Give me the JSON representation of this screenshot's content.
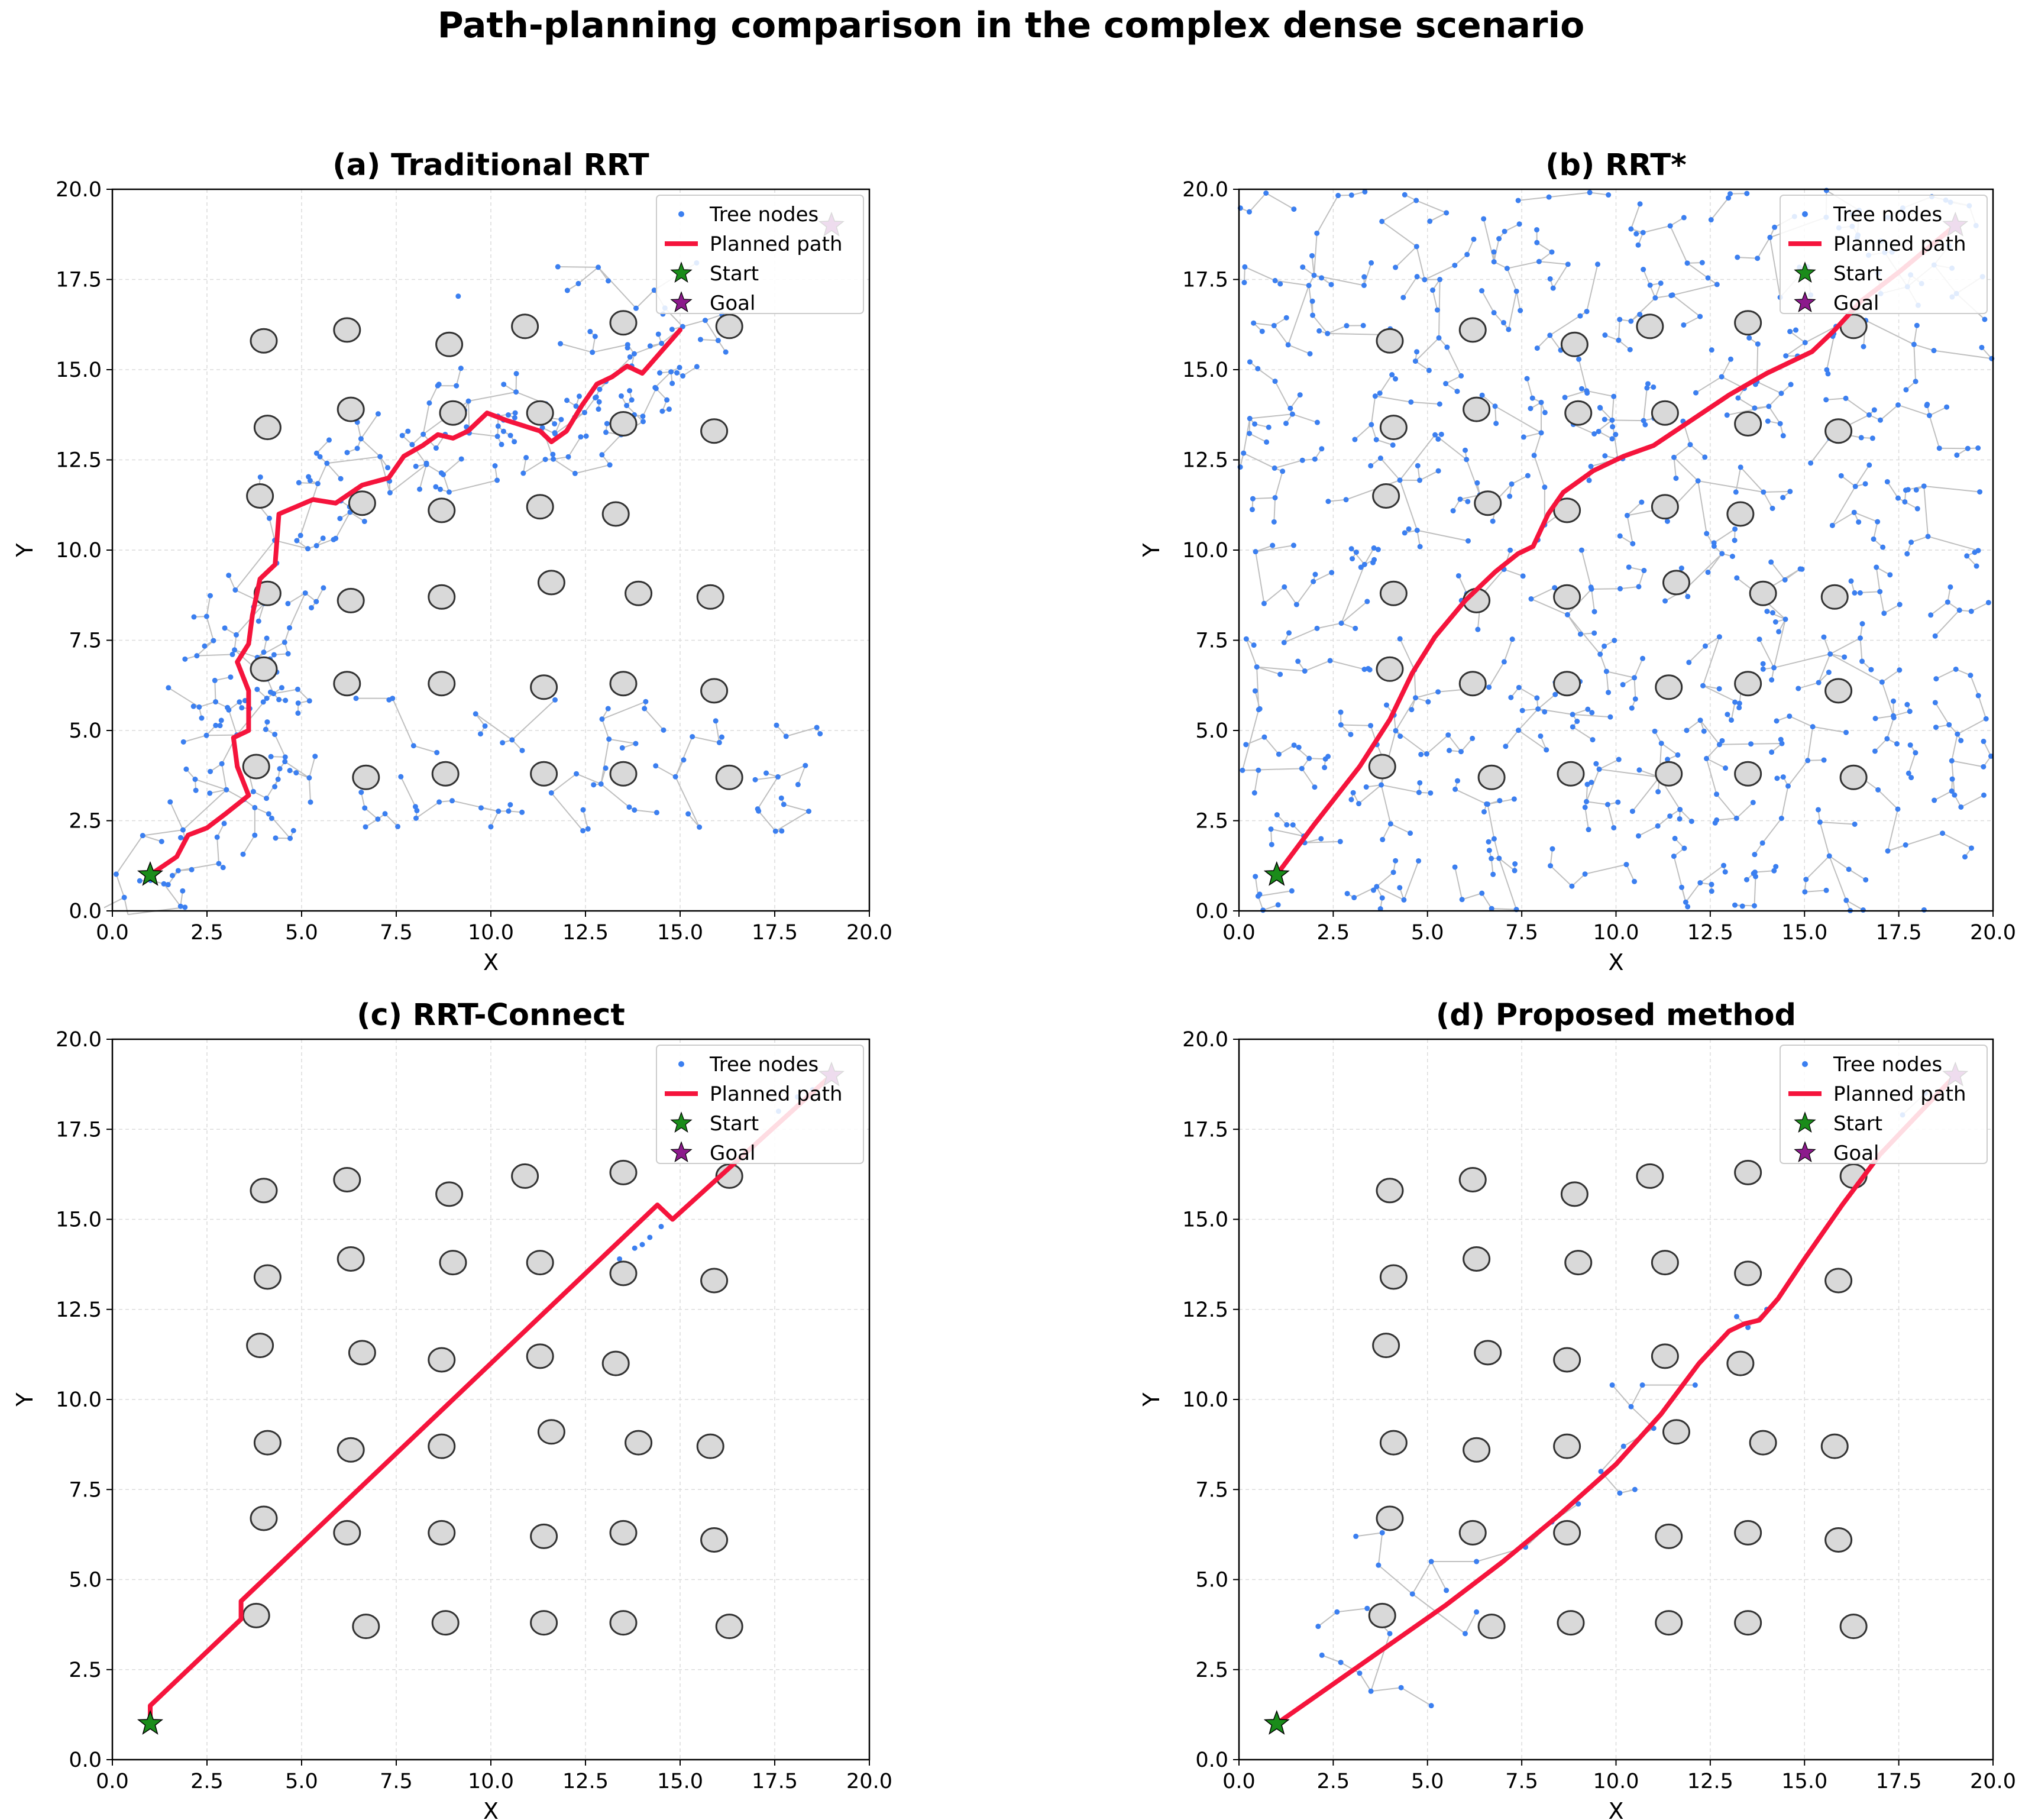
{
  "title": "Path-planning comparison in the complex dense scenario",
  "colors": {
    "tree_node": "#3b7ff0",
    "tree_edge": "#bfbfbf",
    "path": "#f5143c",
    "start": "#1a8c1a",
    "goal": "#8c1a8c",
    "obstacle_fill": "#d9d9d9",
    "obstacle_edge": "#333333"
  },
  "chart_data": [
    {
      "type": "scatter",
      "title": "(a) Traditional RRT",
      "xlabel": "X",
      "ylabel": "Y",
      "xlim": [
        0,
        20
      ],
      "ylim": [
        0,
        20
      ],
      "xticks": [
        "0.0",
        "2.5",
        "5.0",
        "7.5",
        "10.0",
        "12.5",
        "15.0",
        "17.5",
        "20.0"
      ],
      "yticks": [
        "0.0",
        "2.5",
        "5.0",
        "7.5",
        "10.0",
        "12.5",
        "15.0",
        "17.5",
        "20.0"
      ],
      "grid": true,
      "legend": {
        "location": "upper right",
        "entries": [
          "Tree nodes",
          "Planned path",
          "Start",
          "Goal"
        ]
      },
      "obstacles": [
        [
          4.0,
          15.8
        ],
        [
          6.2,
          16.1
        ],
        [
          8.9,
          15.7
        ],
        [
          10.9,
          16.2
        ],
        [
          13.5,
          16.3
        ],
        [
          16.3,
          16.2
        ],
        [
          4.1,
          13.4
        ],
        [
          6.3,
          13.9
        ],
        [
          9.0,
          13.8
        ],
        [
          11.3,
          13.8
        ],
        [
          13.5,
          13.5
        ],
        [
          15.9,
          13.3
        ],
        [
          3.9,
          11.5
        ],
        [
          6.6,
          11.3
        ],
        [
          8.7,
          11.1
        ],
        [
          11.3,
          11.2
        ],
        [
          13.3,
          11.0
        ],
        [
          4.1,
          8.8
        ],
        [
          6.3,
          8.6
        ],
        [
          8.7,
          8.7
        ],
        [
          11.6,
          9.1
        ],
        [
          13.9,
          8.8
        ],
        [
          15.8,
          8.7
        ],
        [
          4.0,
          6.7
        ],
        [
          6.2,
          6.3
        ],
        [
          8.7,
          6.3
        ],
        [
          11.4,
          6.2
        ],
        [
          13.5,
          6.3
        ],
        [
          15.9,
          6.1
        ],
        [
          3.8,
          4.0
        ],
        [
          6.7,
          3.7
        ],
        [
          8.8,
          3.8
        ],
        [
          11.4,
          3.8
        ],
        [
          13.5,
          3.8
        ],
        [
          16.3,
          3.7
        ]
      ],
      "tree_nodes_approx_count": 330,
      "show_tree_edges": true,
      "path": [
        [
          1.0,
          1.0
        ],
        [
          1.7,
          1.5
        ],
        [
          2.0,
          2.1
        ],
        [
          2.5,
          2.3
        ],
        [
          3.0,
          2.7
        ],
        [
          3.6,
          3.2
        ],
        [
          3.3,
          4.0
        ],
        [
          3.2,
          4.8
        ],
        [
          3.6,
          5.0
        ],
        [
          3.6,
          6.1
        ],
        [
          3.3,
          6.9
        ],
        [
          3.6,
          7.4
        ],
        [
          3.7,
          8.2
        ],
        [
          3.9,
          9.2
        ],
        [
          4.3,
          9.6
        ],
        [
          4.4,
          11.0
        ],
        [
          5.3,
          11.4
        ],
        [
          5.9,
          11.3
        ],
        [
          6.6,
          11.8
        ],
        [
          7.3,
          12.0
        ],
        [
          7.7,
          12.6
        ],
        [
          8.2,
          12.9
        ],
        [
          8.6,
          13.2
        ],
        [
          9.0,
          13.1
        ],
        [
          9.4,
          13.3
        ],
        [
          9.9,
          13.8
        ],
        [
          10.4,
          13.6
        ],
        [
          11.3,
          13.3
        ],
        [
          11.6,
          13.0
        ],
        [
          12.0,
          13.3
        ],
        [
          12.4,
          14.0
        ],
        [
          12.8,
          14.6
        ],
        [
          13.2,
          14.8
        ],
        [
          13.6,
          15.1
        ],
        [
          14.0,
          14.9
        ],
        [
          14.5,
          15.5
        ],
        [
          15.0,
          16.1
        ]
      ],
      "start": [
        1.0,
        1.0
      ],
      "goal": [
        19.0,
        19.0
      ]
    },
    {
      "type": "scatter",
      "title": "(b) RRT*",
      "xlabel": "X",
      "ylabel": "Y",
      "xlim": [
        0,
        20
      ],
      "ylim": [
        0,
        20
      ],
      "xticks": [
        "0.0",
        "2.5",
        "5.0",
        "7.5",
        "10.0",
        "12.5",
        "15.0",
        "17.5",
        "20.0"
      ],
      "yticks": [
        "0.0",
        "2.5",
        "5.0",
        "7.5",
        "10.0",
        "12.5",
        "15.0",
        "17.5",
        "20.0"
      ],
      "grid": true,
      "legend": {
        "location": "upper right",
        "entries": [
          "Tree nodes",
          "Planned path",
          "Start",
          "Goal"
        ]
      },
      "obstacles": [
        [
          4.0,
          15.8
        ],
        [
          6.2,
          16.1
        ],
        [
          8.9,
          15.7
        ],
        [
          10.9,
          16.2
        ],
        [
          13.5,
          16.3
        ],
        [
          16.3,
          16.2
        ],
        [
          4.1,
          13.4
        ],
        [
          6.3,
          13.9
        ],
        [
          9.0,
          13.8
        ],
        [
          11.3,
          13.8
        ],
        [
          13.5,
          13.5
        ],
        [
          15.9,
          13.3
        ],
        [
          3.9,
          11.5
        ],
        [
          6.6,
          11.3
        ],
        [
          8.7,
          11.1
        ],
        [
          11.3,
          11.2
        ],
        [
          13.3,
          11.0
        ],
        [
          4.1,
          8.8
        ],
        [
          6.3,
          8.6
        ],
        [
          8.7,
          8.7
        ],
        [
          11.6,
          9.1
        ],
        [
          13.9,
          8.8
        ],
        [
          15.8,
          8.7
        ],
        [
          4.0,
          6.7
        ],
        [
          6.2,
          6.3
        ],
        [
          8.7,
          6.3
        ],
        [
          11.4,
          6.2
        ],
        [
          13.5,
          6.3
        ],
        [
          15.9,
          6.1
        ],
        [
          3.8,
          4.0
        ],
        [
          6.7,
          3.7
        ],
        [
          8.8,
          3.8
        ],
        [
          11.4,
          3.8
        ],
        [
          13.5,
          3.8
        ],
        [
          16.3,
          3.7
        ]
      ],
      "tree_nodes_approx_count": 1500,
      "show_tree_edges": true,
      "path": [
        [
          1.0,
          1.0
        ],
        [
          2.0,
          2.4
        ],
        [
          3.2,
          4.0
        ],
        [
          4.0,
          5.3
        ],
        [
          4.6,
          6.6
        ],
        [
          5.2,
          7.6
        ],
        [
          6.0,
          8.6
        ],
        [
          6.8,
          9.4
        ],
        [
          7.4,
          9.9
        ],
        [
          7.8,
          10.1
        ],
        [
          8.2,
          11.0
        ],
        [
          8.6,
          11.6
        ],
        [
          9.4,
          12.2
        ],
        [
          10.2,
          12.6
        ],
        [
          11.0,
          12.9
        ],
        [
          12.0,
          13.6
        ],
        [
          13.0,
          14.3
        ],
        [
          14.0,
          14.9
        ],
        [
          15.2,
          15.5
        ],
        [
          15.8,
          16.1
        ],
        [
          16.5,
          16.9
        ],
        [
          17.5,
          17.7
        ],
        [
          19.0,
          19.0
        ]
      ],
      "start": [
        1.0,
        1.0
      ],
      "goal": [
        19.0,
        19.0
      ]
    },
    {
      "type": "scatter",
      "title": "(c) RRT-Connect",
      "xlabel": "X",
      "ylabel": "Y",
      "xlim": [
        0,
        20
      ],
      "ylim": [
        0,
        20
      ],
      "xticks": [
        "0.0",
        "2.5",
        "5.0",
        "7.5",
        "10.0",
        "12.5",
        "15.0",
        "17.5",
        "20.0"
      ],
      "yticks": [
        "0.0",
        "2.5",
        "5.0",
        "7.5",
        "10.0",
        "12.5",
        "15.0",
        "17.5",
        "20.0"
      ],
      "grid": true,
      "legend": {
        "location": "upper right",
        "entries": [
          "Tree nodes",
          "Planned path",
          "Start",
          "Goal"
        ]
      },
      "obstacles": [
        [
          4.0,
          15.8
        ],
        [
          6.2,
          16.1
        ],
        [
          8.9,
          15.7
        ],
        [
          10.9,
          16.2
        ],
        [
          13.5,
          16.3
        ],
        [
          16.3,
          16.2
        ],
        [
          4.1,
          13.4
        ],
        [
          6.3,
          13.9
        ],
        [
          9.0,
          13.8
        ],
        [
          11.3,
          13.8
        ],
        [
          13.5,
          13.5
        ],
        [
          15.9,
          13.3
        ],
        [
          3.9,
          11.5
        ],
        [
          6.6,
          11.3
        ],
        [
          8.7,
          11.1
        ],
        [
          11.3,
          11.2
        ],
        [
          13.3,
          11.0
        ],
        [
          4.1,
          8.8
        ],
        [
          6.3,
          8.6
        ],
        [
          8.7,
          8.7
        ],
        [
          11.6,
          9.1
        ],
        [
          13.9,
          8.8
        ],
        [
          15.8,
          8.7
        ],
        [
          4.0,
          6.7
        ],
        [
          6.2,
          6.3
        ],
        [
          8.7,
          6.3
        ],
        [
          11.4,
          6.2
        ],
        [
          13.5,
          6.3
        ],
        [
          15.9,
          6.1
        ],
        [
          3.8,
          4.0
        ],
        [
          6.7,
          3.7
        ],
        [
          8.8,
          3.8
        ],
        [
          11.4,
          3.8
        ],
        [
          13.5,
          3.8
        ],
        [
          16.3,
          3.7
        ]
      ],
      "tree_nodes": [
        [
          13.4,
          13.9
        ],
        [
          13.8,
          14.2
        ],
        [
          14.2,
          14.5
        ],
        [
          14.5,
          14.8
        ],
        [
          14.0,
          14.3
        ],
        [
          17.6,
          18.0
        ],
        [
          18.1,
          18.4
        ],
        [
          18.5,
          18.6
        ]
      ],
      "show_tree_edges": false,
      "path": [
        [
          1.0,
          1.0
        ],
        [
          1.0,
          1.5
        ],
        [
          3.4,
          3.9
        ],
        [
          3.4,
          4.4
        ],
        [
          14.4,
          15.4
        ],
        [
          14.8,
          15.0
        ],
        [
          19.0,
          19.0
        ]
      ],
      "start": [
        1.0,
        1.0
      ],
      "goal": [
        19.0,
        19.0
      ]
    },
    {
      "type": "scatter",
      "title": "(d) Proposed method",
      "xlabel": "X",
      "ylabel": "Y",
      "xlim": [
        0,
        20
      ],
      "ylim": [
        0,
        20
      ],
      "xticks": [
        "0.0",
        "2.5",
        "5.0",
        "7.5",
        "10.0",
        "12.5",
        "15.0",
        "17.5",
        "20.0"
      ],
      "yticks": [
        "0.0",
        "2.5",
        "5.0",
        "7.5",
        "10.0",
        "12.5",
        "15.0",
        "17.5",
        "20.0"
      ],
      "grid": true,
      "legend": {
        "location": "upper right",
        "entries": [
          "Tree nodes",
          "Planned path",
          "Start",
          "Goal"
        ]
      },
      "obstacles": [
        [
          4.0,
          15.8
        ],
        [
          6.2,
          16.1
        ],
        [
          8.9,
          15.7
        ],
        [
          10.9,
          16.2
        ],
        [
          13.5,
          16.3
        ],
        [
          16.3,
          16.2
        ],
        [
          4.1,
          13.4
        ],
        [
          6.3,
          13.9
        ],
        [
          9.0,
          13.8
        ],
        [
          11.3,
          13.8
        ],
        [
          13.5,
          13.5
        ],
        [
          15.9,
          13.3
        ],
        [
          3.9,
          11.5
        ],
        [
          6.6,
          11.3
        ],
        [
          8.7,
          11.1
        ],
        [
          11.3,
          11.2
        ],
        [
          13.3,
          11.0
        ],
        [
          4.1,
          8.8
        ],
        [
          6.3,
          8.6
        ],
        [
          8.7,
          8.7
        ],
        [
          11.6,
          9.1
        ],
        [
          13.9,
          8.8
        ],
        [
          15.8,
          8.7
        ],
        [
          4.0,
          6.7
        ],
        [
          6.2,
          6.3
        ],
        [
          8.7,
          6.3
        ],
        [
          11.4,
          6.2
        ],
        [
          13.5,
          6.3
        ],
        [
          15.9,
          6.1
        ],
        [
          3.8,
          4.0
        ],
        [
          6.7,
          3.7
        ],
        [
          8.8,
          3.8
        ],
        [
          11.4,
          3.8
        ],
        [
          13.5,
          3.8
        ],
        [
          16.3,
          3.7
        ]
      ],
      "tree_nodes": [
        [
          2.1,
          3.7
        ],
        [
          2.6,
          4.1
        ],
        [
          3.4,
          4.2
        ],
        [
          4.0,
          3.5
        ],
        [
          3.1,
          6.2
        ],
        [
          3.8,
          6.3
        ],
        [
          3.7,
          5.4
        ],
        [
          4.6,
          4.6
        ],
        [
          5.1,
          5.5
        ],
        [
          6.3,
          5.5
        ],
        [
          6.0,
          3.5
        ],
        [
          5.5,
          4.7
        ],
        [
          3.5,
          1.9
        ],
        [
          4.3,
          2.0
        ],
        [
          5.1,
          1.5
        ],
        [
          3.2,
          2.4
        ],
        [
          2.7,
          2.7
        ],
        [
          2.2,
          2.9
        ],
        [
          6.3,
          4.1
        ],
        [
          9.9,
          10.4
        ],
        [
          10.4,
          9.8
        ],
        [
          11.0,
          9.2
        ],
        [
          10.2,
          8.7
        ],
        [
          9.6,
          8.0
        ],
        [
          10.1,
          7.4
        ],
        [
          10.5,
          7.5
        ],
        [
          10.7,
          10.4
        ],
        [
          12.1,
          10.4
        ],
        [
          13.2,
          12.3
        ],
        [
          13.5,
          12.0
        ],
        [
          14.0,
          12.5
        ],
        [
          7.6,
          5.9
        ],
        [
          8.3,
          6.6
        ],
        [
          9.0,
          7.1
        ],
        [
          17.6,
          17.9
        ],
        [
          18.2,
          18.5
        ]
      ],
      "show_tree_edges": true,
      "path": [
        [
          1.0,
          1.0
        ],
        [
          2.5,
          2.1
        ],
        [
          4.0,
          3.2
        ],
        [
          5.5,
          4.3
        ],
        [
          7.0,
          5.5
        ],
        [
          8.5,
          6.8
        ],
        [
          10.0,
          8.2
        ],
        [
          11.2,
          9.6
        ],
        [
          12.2,
          11.0
        ],
        [
          13.0,
          11.9
        ],
        [
          13.4,
          12.1
        ],
        [
          13.8,
          12.2
        ],
        [
          14.3,
          12.8
        ],
        [
          15.0,
          13.9
        ],
        [
          16.0,
          15.4
        ],
        [
          17.0,
          16.8
        ],
        [
          18.0,
          17.9
        ],
        [
          19.0,
          19.0
        ]
      ],
      "start": [
        1.0,
        1.0
      ],
      "goal": [
        19.0,
        19.0
      ]
    }
  ]
}
